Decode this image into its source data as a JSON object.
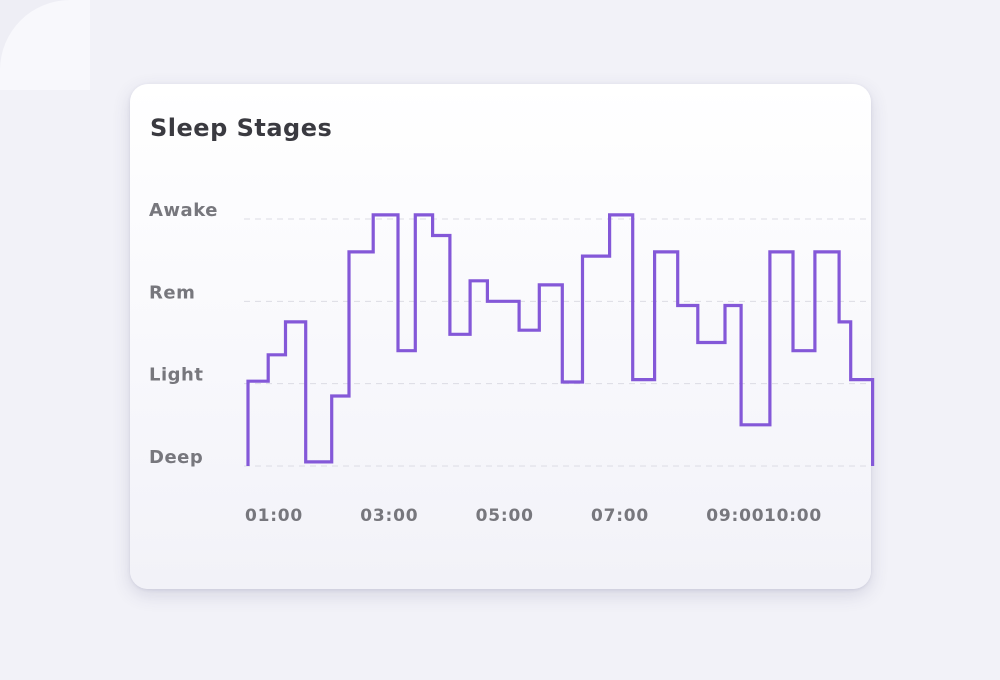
{
  "card": {
    "title": "Sleep Stages"
  },
  "colors": {
    "line": "#8458d8",
    "grid": "#dcdce4",
    "label": "#77777d",
    "title": "#3a3a40"
  },
  "chart_data": {
    "type": "line",
    "step": true,
    "title": "Sleep Stages",
    "xlabel": "",
    "ylabel": "",
    "y_levels": [
      "Deep",
      "Light",
      "Rem",
      "Awake"
    ],
    "ylim": [
      0,
      3
    ],
    "x_tick_labels": [
      "01:00",
      "03:00",
      "05:00",
      "07:00",
      "09:00",
      "10:00"
    ],
    "x_ticks": [
      1.0,
      3.0,
      5.0,
      7.0,
      9.0,
      10.0
    ],
    "xlim": [
      0.55,
      11.1
    ],
    "grid": true,
    "legend": "none",
    "series": [
      {
        "points": [
          [
            0.55,
            0
          ],
          [
            0.55,
            1.03
          ],
          [
            0.9,
            1.03
          ],
          [
            0.9,
            1.35
          ],
          [
            1.2,
            1.35
          ],
          [
            1.2,
            1.75
          ],
          [
            1.55,
            1.75
          ],
          [
            1.55,
            0.05
          ],
          [
            2.0,
            0.05
          ],
          [
            2.0,
            0.85
          ],
          [
            2.3,
            0.85
          ],
          [
            2.3,
            2.6
          ],
          [
            2.72,
            2.6
          ],
          [
            2.72,
            3.05
          ],
          [
            3.15,
            3.05
          ],
          [
            3.15,
            1.4
          ],
          [
            3.45,
            1.4
          ],
          [
            3.45,
            3.05
          ],
          [
            3.75,
            3.05
          ],
          [
            3.75,
            2.8
          ],
          [
            4.05,
            2.8
          ],
          [
            4.05,
            1.6
          ],
          [
            4.4,
            1.6
          ],
          [
            4.4,
            2.25
          ],
          [
            4.7,
            2.25
          ],
          [
            4.7,
            2.0
          ],
          [
            5.25,
            2.0
          ],
          [
            5.25,
            1.65
          ],
          [
            5.6,
            1.65
          ],
          [
            5.6,
            2.2
          ],
          [
            6.0,
            2.2
          ],
          [
            6.0,
            1.02
          ],
          [
            6.35,
            1.02
          ],
          [
            6.35,
            2.55
          ],
          [
            6.82,
            2.55
          ],
          [
            6.82,
            3.05
          ],
          [
            7.22,
            3.05
          ],
          [
            7.22,
            1.05
          ],
          [
            7.6,
            1.05
          ],
          [
            7.6,
            2.6
          ],
          [
            8.0,
            2.6
          ],
          [
            8.0,
            1.95
          ],
          [
            8.35,
            1.95
          ],
          [
            8.35,
            1.5
          ],
          [
            8.82,
            1.5
          ],
          [
            8.82,
            1.95
          ],
          [
            9.1,
            1.95
          ],
          [
            9.1,
            0.5
          ],
          [
            9.6,
            0.5
          ],
          [
            9.6,
            2.6
          ],
          [
            10.0,
            2.6
          ],
          [
            10.0,
            1.4
          ],
          [
            10.38,
            1.4
          ],
          [
            10.38,
            2.6
          ],
          [
            10.8,
            2.6
          ],
          [
            10.8,
            1.75
          ],
          [
            11.0,
            1.75
          ],
          [
            11.0,
            1.05
          ],
          [
            11.38,
            1.05
          ],
          [
            11.38,
            0
          ]
        ]
      }
    ]
  }
}
